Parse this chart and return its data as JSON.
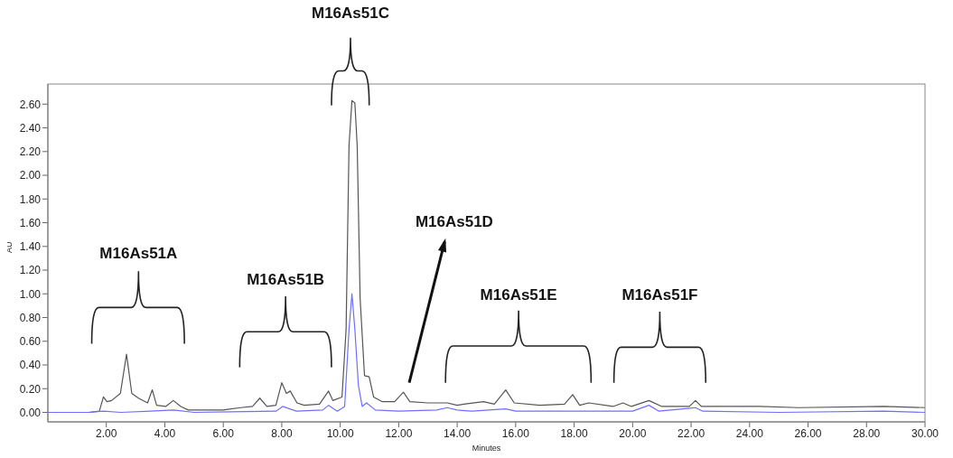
{
  "chart_data": {
    "type": "line",
    "xlabel": "Minutes",
    "ylabel": "AU",
    "xlim": [
      0,
      30
    ],
    "ylim": [
      -0.08,
      2.77
    ],
    "xticks": [
      {
        "value": 2,
        "label": "2.00"
      },
      {
        "value": 4,
        "label": "4.00"
      },
      {
        "value": 6,
        "label": "6.00"
      },
      {
        "value": 8,
        "label": "8.00"
      },
      {
        "value": 10,
        "label": "10.00"
      },
      {
        "value": 12,
        "label": "12.00"
      },
      {
        "value": 14,
        "label": "14.00"
      },
      {
        "value": 16,
        "label": "16.00"
      },
      {
        "value": 18,
        "label": "18.00"
      },
      {
        "value": 20,
        "label": "20.00"
      },
      {
        "value": 22,
        "label": "22.00"
      },
      {
        "value": 24,
        "label": "24.00"
      },
      {
        "value": 26,
        "label": "26.00"
      },
      {
        "value": 28,
        "label": "28.00"
      },
      {
        "value": 30,
        "label": "30.00"
      }
    ],
    "yticks": [
      {
        "value": 0,
        "label": "0.00"
      },
      {
        "value": 0.2,
        "label": "0.20"
      },
      {
        "value": 0.4,
        "label": "0.40"
      },
      {
        "value": 0.6,
        "label": "0.60"
      },
      {
        "value": 0.8,
        "label": "0.80"
      },
      {
        "value": 1,
        "label": "1.00"
      },
      {
        "value": 1.2,
        "label": "1.20"
      },
      {
        "value": 1.4,
        "label": "1.40"
      },
      {
        "value": 1.6,
        "label": "1.60"
      },
      {
        "value": 1.8,
        "label": "1.80"
      },
      {
        "value": 2,
        "label": "2.00"
      },
      {
        "value": 2.2,
        "label": "2.20"
      },
      {
        "value": 2.4,
        "label": "2.40"
      },
      {
        "value": 2.6,
        "label": "2.60"
      }
    ],
    "grid": false,
    "annotations": [
      "M16As51A",
      "M16As51B",
      "M16As51C",
      "M16As51D",
      "M16As51E",
      "M16As51F"
    ],
    "series": [
      {
        "color": "#555555",
        "x": [
          0,
          1.4,
          1.76,
          1.9,
          2.02,
          2.18,
          2.48,
          2.69,
          2.87,
          3.1,
          3.41,
          3.57,
          3.72,
          4.03,
          4.29,
          4.55,
          4.8,
          5.99,
          6.6,
          7.0,
          7.25,
          7.49,
          7.8,
          8.0,
          8.16,
          8.29,
          8.52,
          8.77,
          9.29,
          9.6,
          9.75,
          10.06,
          10.2,
          10.3,
          10.4,
          10.5,
          10.58,
          10.68,
          10.83,
          10.99,
          11.14,
          11.44,
          11.86,
          12.16,
          12.38,
          13.0,
          13.66,
          14.0,
          14.23,
          14.9,
          15.27,
          15.66,
          15.95,
          16.83,
          17.67,
          17.95,
          18.19,
          18.5,
          19.33,
          19.67,
          19.96,
          20.56,
          21.0,
          21.94,
          22.15,
          22.35,
          23.6,
          24.33,
          25.69,
          28.6,
          30
        ],
        "values": [
          0,
          0,
          0.01,
          0.13,
          0.09,
          0.1,
          0.16,
          0.49,
          0.16,
          0.12,
          0.08,
          0.19,
          0.06,
          0.05,
          0.1,
          0.05,
          0.02,
          0.02,
          0.04,
          0.05,
          0.12,
          0.05,
          0.06,
          0.25,
          0.16,
          0.18,
          0.08,
          0.06,
          0.07,
          0.18,
          0.1,
          0.13,
          0.7,
          2.25,
          2.63,
          2.61,
          2.25,
          0.96,
          0.31,
          0.3,
          0.13,
          0.09,
          0.09,
          0.17,
          0.09,
          0.08,
          0.08,
          0.06,
          0.07,
          0.09,
          0.07,
          0.19,
          0.08,
          0.06,
          0.07,
          0.15,
          0.06,
          0.08,
          0.05,
          0.08,
          0.05,
          0.1,
          0.05,
          0.05,
          0.1,
          0.05,
          0.05,
          0.05,
          0.04,
          0.05,
          0.04
        ]
      },
      {
        "color": "#6f6fff",
        "x": [
          0,
          1.4,
          1.9,
          2.5,
          3.5,
          4.3,
          5.0,
          7.8,
          8.03,
          8.5,
          9.4,
          9.6,
          9.9,
          10.15,
          10.3,
          10.4,
          10.5,
          10.62,
          10.75,
          10.9,
          11.2,
          12.0,
          13.3,
          13.66,
          14.0,
          14.5,
          15.66,
          16.0,
          18.0,
          20.0,
          20.56,
          20.9,
          22.15,
          22.4,
          25.0,
          28.6,
          30
        ],
        "values": [
          0,
          0,
          0.01,
          0,
          0.01,
          0.02,
          0,
          0.01,
          0.05,
          0.01,
          0.02,
          0.06,
          0.01,
          0.05,
          0.7,
          1.0,
          0.7,
          0.23,
          0.05,
          0.08,
          0.02,
          0.01,
          0.02,
          0.04,
          0.02,
          0.01,
          0.03,
          0.01,
          0.01,
          0.01,
          0.06,
          0.01,
          0.04,
          0.01,
          0,
          0.01,
          0
        ]
      }
    ]
  }
}
